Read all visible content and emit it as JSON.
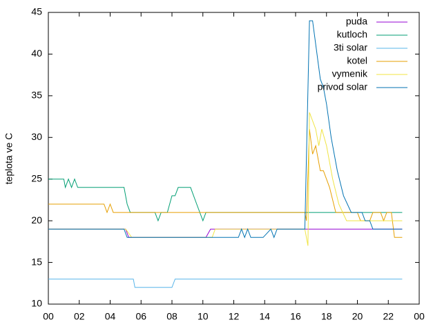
{
  "chart_data": {
    "type": "line",
    "ylabel": "teplota ve C",
    "xlim": [
      0,
      24
    ],
    "xticks": [
      {
        "value": 0,
        "label": "00"
      },
      {
        "value": 2,
        "label": "02"
      },
      {
        "value": 4,
        "label": "04"
      },
      {
        "value": 6,
        "label": "06"
      },
      {
        "value": 8,
        "label": "08"
      },
      10,
      12,
      14,
      16,
      18,
      20,
      22,
      {
        "value": 24,
        "label": "00"
      }
    ],
    "ylim": [
      10,
      45
    ],
    "yticks": [
      10,
      15,
      20,
      25,
      30,
      35,
      40,
      45
    ],
    "legend": "top-right",
    "series": [
      {
        "name": "puda",
        "color": "#9400d3",
        "x": [
          0,
          5,
          5.2,
          10.2,
          10.5,
          22.9
        ],
        "values": [
          19,
          19,
          18,
          18,
          19,
          19
        ]
      },
      {
        "name": "kutloch",
        "color": "#009e73",
        "x": [
          0,
          1,
          1.1,
          1.3,
          1.5,
          1.7,
          1.9,
          4.9,
          5.1,
          5.3,
          6.9,
          7.1,
          7.3,
          7.7,
          8,
          8.2,
          8.4,
          9.2,
          9.6,
          10,
          10.2,
          22.9
        ],
        "values": [
          25,
          25,
          24,
          25,
          24,
          25,
          24,
          24,
          22,
          21,
          21,
          20,
          21,
          21,
          23,
          23,
          24,
          24,
          22,
          20,
          21,
          21
        ]
      },
      {
        "name": "3ti solar",
        "color": "#56b4e9",
        "x": [
          0,
          5.5,
          5.6,
          8,
          8.2,
          22.9
        ],
        "values": [
          13,
          13,
          12,
          12,
          13,
          13
        ]
      },
      {
        "name": "kotel",
        "color": "#e69f00",
        "x": [
          0,
          3.6,
          3.8,
          4,
          4.2,
          16.6,
          16.7,
          16.9,
          17.1,
          17.3,
          17.6,
          17.8,
          18.2,
          18.6,
          20,
          20.2,
          20.8,
          21,
          21.5,
          21.7,
          21.9,
          22.2,
          22.4,
          22.9
        ],
        "values": [
          22,
          22,
          21,
          22,
          21,
          21,
          20,
          31,
          28,
          29,
          26,
          26,
          24,
          21,
          21,
          20,
          20,
          21,
          21,
          20,
          21,
          21,
          18,
          18
        ]
      },
      {
        "name": "vymenik",
        "color": "#f0e442",
        "x": [
          0,
          5,
          5.4,
          10.6,
          10.8,
          16.6,
          16.8,
          16.9,
          17.3,
          17.5,
          17.7,
          18,
          18.4,
          18.8,
          19.3,
          22.9
        ],
        "values": [
          19,
          19,
          18,
          18,
          19,
          19,
          17,
          33,
          31,
          29,
          31,
          29,
          25,
          22,
          20,
          20
        ]
      },
      {
        "name": "privod solar",
        "color": "#0072b2",
        "x": [
          0,
          4.9,
          5.1,
          12.3,
          12.5,
          12.7,
          12.9,
          13.1,
          13.9,
          14.4,
          14.6,
          14.8,
          16.6,
          16.9,
          17.1,
          17.6,
          17.8,
          18,
          18.3,
          18.7,
          19.1,
          19.6,
          20.3,
          20.5,
          20.8,
          21,
          22.9
        ],
        "values": [
          19,
          19,
          18,
          18,
          19,
          18,
          19,
          18,
          18,
          19,
          18,
          19,
          19,
          44,
          44,
          37,
          36,
          34,
          30,
          26,
          23,
          21,
          21,
          20,
          20,
          19,
          19
        ]
      }
    ]
  }
}
